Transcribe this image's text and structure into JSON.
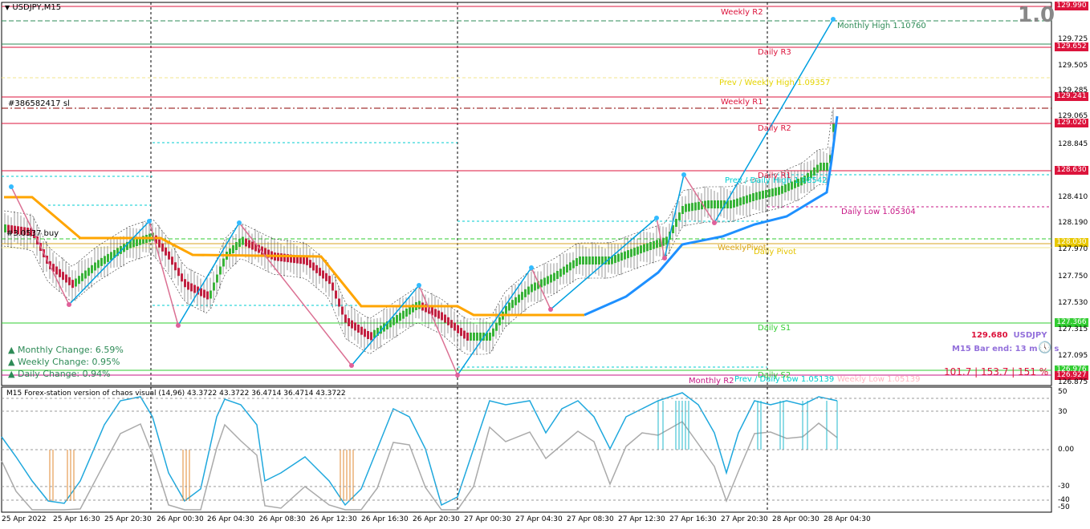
{
  "window": {
    "title": "USDJPY,M15",
    "version_badge": "1.0"
  },
  "order_line": "#386582417 sl",
  "buy_label": "#3.0537 buy",
  "levels": {
    "weekly_r2": "Weekly R2",
    "monthly_high": "Monthly High 1.10760",
    "daily_r3": "Daily R3",
    "prev_weekly_high": "Prev / Weekly High 1.09357",
    "weekly_r1": "Weekly R1",
    "daily_r2": "Daily R2",
    "daily_r1": "Daily R1",
    "prev_daily_high": "Prev / Daily High 1.08542",
    "daily_low": "Daily Low 1.05304",
    "weekly_pivot": "WeeklyPivot",
    "daily_pivot": "Daily Pivot",
    "daily_s1": "Daily S1",
    "daily_s2": "Daily S2",
    "monthly_r2": "Monthly R2",
    "prev_daily_low": "Prev / Daily Low 1.05139",
    "weekly_low": "Weekly Low 1.05139"
  },
  "price_boxes": [
    "129.990",
    "129.652",
    "129.241",
    "129.020",
    "128.630",
    "128.030",
    "127.366",
    "126.976",
    "126.927"
  ],
  "price_axis": [
    "129.990",
    "129.725",
    "129.505",
    "129.285",
    "129.065",
    "128.845",
    "128.630",
    "128.410",
    "128.190",
    "127.970",
    "127.750",
    "127.530",
    "127.315",
    "127.095",
    "126.875"
  ],
  "changes": {
    "monthly": "Monthly Change: 6.59%",
    "weekly": "Weekly Change: 0.95%",
    "daily": "Daily Change: 0.94%"
  },
  "info": {
    "price": "129.680",
    "symbol": "USDJPY",
    "bar_end": "M15 Bar end: 13 m 37 s",
    "ratios": "101.7 | 153.7 | 151 %"
  },
  "indicator": {
    "title": "M15 Forex-station version of chaos visual (14,96) 43.3722 43.3722 36.4714 36.4714 43.3722",
    "axis": [
      "50",
      "30",
      "0.00",
      "-30",
      "-40",
      "-50"
    ]
  },
  "time_axis": [
    "25 Apr 2022",
    "25 Apr 16:30",
    "25 Apr 20:30",
    "26 Apr 00:30",
    "26 Apr 04:30",
    "26 Apr 08:30",
    "26 Apr 12:30",
    "26 Apr 16:30",
    "26 Apr 20:30",
    "27 Apr 00:30",
    "27 Apr 04:30",
    "27 Apr 08:30",
    "27 Apr 12:30",
    "27 Apr 16:30",
    "27 Apr 20:30",
    "28 Apr 00:30",
    "28 Apr 04:30"
  ],
  "colors": {
    "bull": "#33cc33",
    "bear": "#dc143c",
    "ma_orange": "#ffa500",
    "ma_blue": "#1e90ff",
    "zigzag_blue": "#00a0e0",
    "zigzag_pink": "#db7093",
    "level_red": "#dc143c",
    "level_green": "#32cd32"
  }
}
